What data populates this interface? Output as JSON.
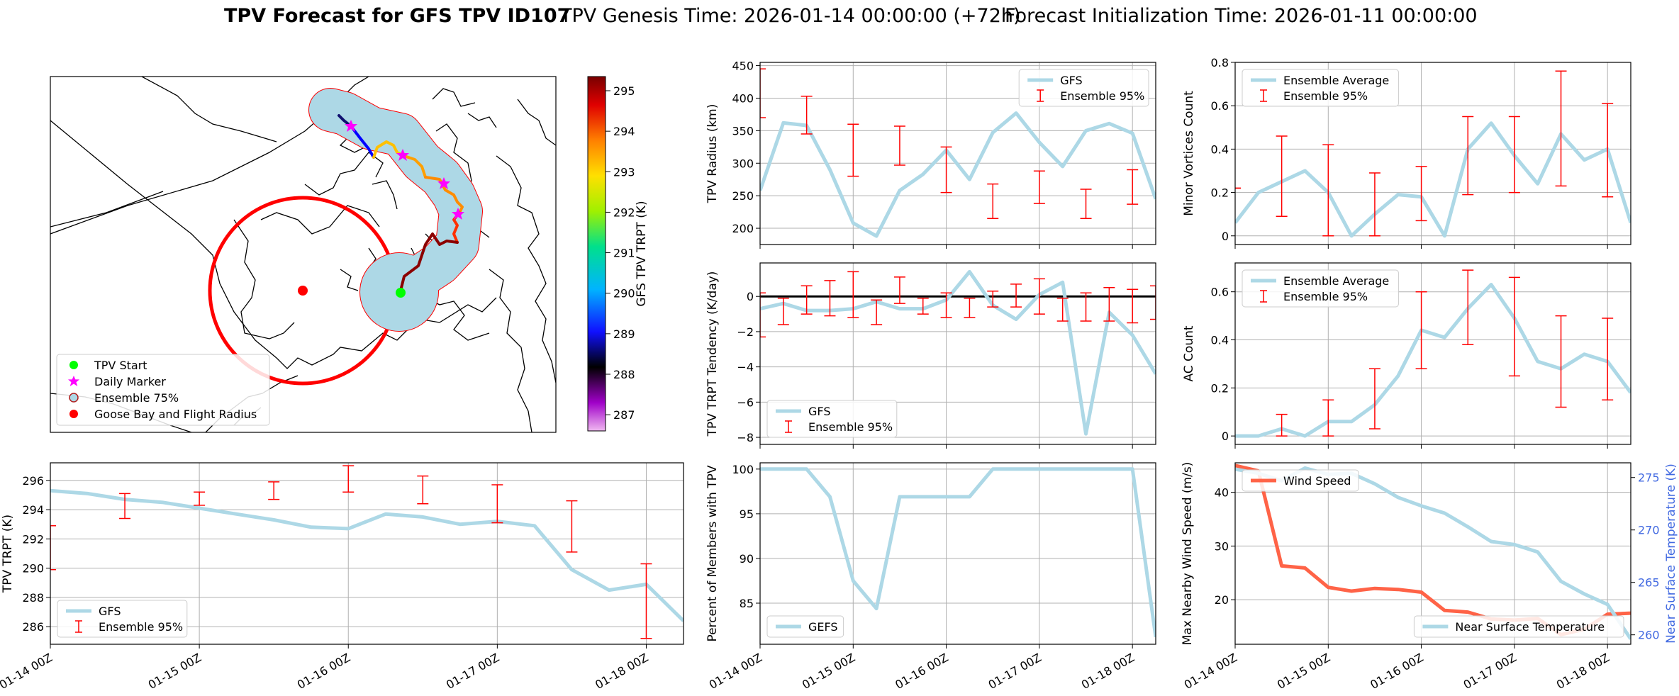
{
  "title": {
    "bold": "TPV Forecast for GFS TPV ID107",
    "genesis": "TPV Genesis Time: 2026-01-14 00:00:00 (+72h)",
    "init": "Forecast Initialization Time: 2026-01-11 00:00:00"
  },
  "colors": {
    "gfs": "#add8e6",
    "ensemble": "#ff0000",
    "wind": "#ff6347",
    "temp_axis": "#4169e1",
    "track_fill": "#add8e6",
    "start": "#00ff00",
    "marker": "#ff00ff",
    "goose": "#ff0000"
  },
  "date_ticks": [
    "01-14 00Z",
    "01-15 00Z",
    "01-16 00Z",
    "01-17 00Z",
    "01-18 00Z"
  ],
  "map": {
    "colorbar": {
      "label": "GFS TPV TRPT (K)",
      "ticks": [
        "295",
        "294",
        "293",
        "292",
        "291",
        "290",
        "289",
        "288",
        "287"
      ],
      "vmin": 286.6,
      "vmax": 295.35
    },
    "legend": [
      {
        "label": "TPV Start",
        "icon": "green-circle"
      },
      {
        "label": "Daily Marker",
        "icon": "magenta-star"
      },
      {
        "label": "Ensemble 75%",
        "icon": "lightblue-circle"
      },
      {
        "label": "Goose Bay and Flight Radius",
        "icon": "red-circle"
      }
    ]
  },
  "chart_data": [
    {
      "id": "radius",
      "type": "line",
      "ylabel": "TPV Radius (km)",
      "ylim": [
        175,
        455
      ],
      "yticks": [
        200,
        250,
        300,
        350,
        400,
        450
      ],
      "legend": [
        "GFS",
        "Ensemble 95%"
      ],
      "series": [
        {
          "name": "GFS",
          "x_days": [
            0,
            0.25,
            0.5,
            0.75,
            1,
            1.25,
            1.5,
            1.75,
            2,
            2.25,
            2.5,
            2.75,
            3,
            3.25,
            3.5,
            3.75,
            4,
            4.25
          ],
          "values": [
            258,
            362,
            358,
            290,
            208,
            188,
            258,
            283,
            320,
            275,
            347,
            377,
            332,
            295,
            350,
            361,
            346,
            245
          ]
        }
      ],
      "errorbars": [
        {
          "x": 0,
          "low": 370,
          "high": 445
        },
        {
          "x": 0.5,
          "low": 345,
          "high": 403
        },
        {
          "x": 1,
          "low": 280,
          "high": 360
        },
        {
          "x": 1.5,
          "low": 297,
          "high": 357
        },
        {
          "x": 2,
          "low": 255,
          "high": 325
        },
        {
          "x": 2.5,
          "low": 215,
          "high": 268
        },
        {
          "x": 3,
          "low": 238,
          "high": 288
        },
        {
          "x": 3.5,
          "low": 215,
          "high": 260
        },
        {
          "x": 4,
          "low": 237,
          "high": 290
        }
      ]
    },
    {
      "id": "minor",
      "type": "line",
      "ylabel": "Minor Vortices Count",
      "ylim": [
        -0.04,
        0.8
      ],
      "yticks": [
        0.0,
        0.2,
        0.4,
        0.6,
        0.8
      ],
      "legend": [
        "Ensemble Average",
        "Ensemble 95%"
      ],
      "series": [
        {
          "name": "Ensemble Average",
          "x_days": [
            0,
            0.25,
            0.5,
            0.75,
            1,
            1.25,
            1.5,
            1.75,
            2,
            2.25,
            2.5,
            2.75,
            3,
            3.25,
            3.5,
            3.75,
            4,
            4.25
          ],
          "values": [
            0.06,
            0.2,
            0.25,
            0.3,
            0.2,
            0.0,
            0.1,
            0.19,
            0.18,
            0.0,
            0.4,
            0.52,
            0.37,
            0.24,
            0.47,
            0.35,
            0.4,
            0.06
          ]
        }
      ],
      "errorbars": [
        {
          "x": 0,
          "low": 0.22,
          "high": 0.22
        },
        {
          "x": 0.5,
          "low": 0.09,
          "high": 0.46
        },
        {
          "x": 1,
          "low": 0.0,
          "high": 0.42
        },
        {
          "x": 1.5,
          "low": 0.0,
          "high": 0.29
        },
        {
          "x": 2,
          "low": 0.07,
          "high": 0.32
        },
        {
          "x": 2.5,
          "low": 0.19,
          "high": 0.55
        },
        {
          "x": 3,
          "low": 0.2,
          "high": 0.55
        },
        {
          "x": 3.5,
          "low": 0.23,
          "high": 0.76
        },
        {
          "x": 4,
          "low": 0.18,
          "high": 0.61
        }
      ]
    },
    {
      "id": "tendency",
      "type": "line",
      "ylabel": "TPV TRPT Tendency (K/day)",
      "ylim": [
        -8.4,
        1.9
      ],
      "yticks": [
        -8,
        -6,
        -4,
        -2,
        0
      ],
      "zero_line": true,
      "legend": [
        "GFS",
        "Ensemble 95%"
      ],
      "series": [
        {
          "name": "GFS",
          "x_days": [
            0,
            0.25,
            0.5,
            0.75,
            1,
            1.25,
            1.5,
            1.75,
            2,
            2.25,
            2.5,
            2.75,
            3,
            3.25,
            3.5,
            3.75,
            4,
            4.25
          ],
          "values": [
            -0.7,
            -0.4,
            -0.8,
            -0.8,
            -0.7,
            -0.3,
            -0.7,
            -0.7,
            -0.2,
            1.4,
            -0.5,
            -1.3,
            0.1,
            0.8,
            -7.8,
            -0.9,
            -2.2,
            -4.4
          ]
        }
      ],
      "errorbars": [
        {
          "x": 0,
          "low": -2.3,
          "high": 0.2
        },
        {
          "x": 0.25,
          "low": -1.6,
          "high": -0.1
        },
        {
          "x": 0.5,
          "low": -1.0,
          "high": 0.6
        },
        {
          "x": 0.75,
          "low": -1.1,
          "high": 0.9
        },
        {
          "x": 1,
          "low": -1.2,
          "high": 1.4
        },
        {
          "x": 1.25,
          "low": -1.6,
          "high": -0.2
        },
        {
          "x": 1.5,
          "low": -0.4,
          "high": 1.1
        },
        {
          "x": 1.75,
          "low": -1.0,
          "high": -0.1
        },
        {
          "x": 2,
          "low": -1.2,
          "high": 0.2
        },
        {
          "x": 2.25,
          "low": -1.2,
          "high": -0.1
        },
        {
          "x": 2.5,
          "low": -0.6,
          "high": 0.3
        },
        {
          "x": 2.75,
          "low": -0.6,
          "high": 0.7
        },
        {
          "x": 3,
          "low": -1.0,
          "high": 1.0
        },
        {
          "x": 3.25,
          "low": -1.4,
          "high": -0.1
        },
        {
          "x": 3.5,
          "low": -1.4,
          "high": 0.2
        },
        {
          "x": 3.75,
          "low": -1.4,
          "high": 0.5
        },
        {
          "x": 4,
          "low": -1.5,
          "high": 0.4
        },
        {
          "x": 4.25,
          "low": -1.3,
          "high": 0.6
        }
      ]
    },
    {
      "id": "ac",
      "type": "line",
      "ylabel": "AC Count",
      "ylim": [
        -0.035,
        0.72
      ],
      "yticks": [
        0.0,
        0.2,
        0.4,
        0.6
      ],
      "legend": [
        "Ensemble Average",
        "Ensemble 95%"
      ],
      "series": [
        {
          "name": "Ensemble Average",
          "x_days": [
            0,
            0.25,
            0.5,
            0.75,
            1,
            1.25,
            1.5,
            1.75,
            2,
            2.25,
            2.5,
            2.75,
            3,
            3.25,
            3.5,
            3.75,
            4,
            4.25
          ],
          "values": [
            0.0,
            0.0,
            0.03,
            0.0,
            0.06,
            0.06,
            0.13,
            0.25,
            0.44,
            0.41,
            0.53,
            0.63,
            0.49,
            0.31,
            0.28,
            0.34,
            0.31,
            0.18
          ]
        }
      ],
      "errorbars": [
        {
          "x": 0.5,
          "low": 0.0,
          "high": 0.09
        },
        {
          "x": 1,
          "low": 0.0,
          "high": 0.15
        },
        {
          "x": 1.5,
          "low": 0.03,
          "high": 0.28
        },
        {
          "x": 2,
          "low": 0.28,
          "high": 0.6
        },
        {
          "x": 2.5,
          "low": 0.38,
          "high": 0.69
        },
        {
          "x": 3,
          "low": 0.25,
          "high": 0.66
        },
        {
          "x": 3.5,
          "low": 0.12,
          "high": 0.5
        },
        {
          "x": 4,
          "low": 0.15,
          "high": 0.49
        }
      ]
    },
    {
      "id": "trpt",
      "type": "line",
      "ylabel": "TPV TRPT (K)",
      "ylim": [
        284.8,
        297.2
      ],
      "yticks": [
        286,
        288,
        290,
        292,
        294,
        296
      ],
      "legend": [
        "GFS",
        "Ensemble 95%"
      ],
      "series": [
        {
          "name": "GFS",
          "x_days": [
            0,
            0.25,
            0.5,
            0.75,
            1,
            1.25,
            1.5,
            1.75,
            2,
            2.25,
            2.5,
            2.75,
            3,
            3.25,
            3.5,
            3.75,
            4,
            4.25
          ],
          "values": [
            295.3,
            295.1,
            294.7,
            294.5,
            294.1,
            293.7,
            293.3,
            292.8,
            292.7,
            293.7,
            293.5,
            293.0,
            293.2,
            292.9,
            289.9,
            288.5,
            288.9,
            286.4
          ]
        }
      ],
      "errorbars": [
        {
          "x": 0,
          "low": 289.9,
          "high": 292.9
        },
        {
          "x": 0.5,
          "low": 293.4,
          "high": 295.1
        },
        {
          "x": 1,
          "low": 294.3,
          "high": 295.2
        },
        {
          "x": 1.5,
          "low": 294.7,
          "high": 295.9
        },
        {
          "x": 2,
          "low": 295.2,
          "high": 297.0
        },
        {
          "x": 2.5,
          "low": 294.4,
          "high": 296.3
        },
        {
          "x": 3,
          "low": 293.1,
          "high": 295.7
        },
        {
          "x": 3.5,
          "low": 291.1,
          "high": 294.6
        },
        {
          "x": 4,
          "low": 285.2,
          "high": 290.3
        }
      ]
    },
    {
      "id": "members",
      "type": "line",
      "ylabel": "Percent of Members with TPV",
      "ylim": [
        80.4,
        100.7
      ],
      "yticks": [
        85,
        90,
        95,
        100
      ],
      "legend": [
        "GEFS"
      ],
      "series": [
        {
          "name": "GEFS",
          "x_days": [
            0,
            0.25,
            0.5,
            0.75,
            1,
            1.25,
            1.5,
            1.75,
            2,
            2.25,
            2.5,
            2.75,
            3,
            3.25,
            3.5,
            3.75,
            4,
            4.25
          ],
          "values": [
            100,
            100,
            100,
            96.9,
            87.5,
            84.4,
            96.9,
            96.9,
            96.9,
            96.9,
            100,
            100,
            100,
            100,
            100,
            100,
            100,
            81.2
          ]
        }
      ]
    },
    {
      "id": "wind_temp",
      "type": "line",
      "ylabel": "Max Nearby Wind Speed (m/s)",
      "ylabel_right": "Near Surface Temperature (K)",
      "ylim": [
        11.7,
        45.5
      ],
      "yticks": [
        20,
        30,
        40
      ],
      "ylim_right": [
        259.1,
        276.4
      ],
      "yticks_right": [
        260,
        265,
        270,
        275
      ],
      "legend": [
        "Wind Speed"
      ],
      "legend_right": [
        "Near Surface Temperature"
      ],
      "series": [
        {
          "name": "Wind Speed",
          "x_days": [
            0,
            0.25,
            0.5,
            0.75,
            1,
            1.25,
            1.5,
            1.75,
            2,
            2.25,
            2.5,
            2.75,
            3,
            3.25,
            3.5,
            3.75,
            4,
            4.25
          ],
          "values": [
            45,
            44,
            26.3,
            25.9,
            22.3,
            21.6,
            22.1,
            21.9,
            21.4,
            18.0,
            17.7,
            16.4,
            16.2,
            16.5,
            13.5,
            14.5,
            17.3,
            17.5
          ]
        },
        {
          "name": "Near Surface Temperature",
          "axis": "right",
          "x_days": [
            0,
            0.25,
            0.5,
            0.75,
            1,
            1.25,
            1.5,
            1.75,
            2,
            2.25,
            2.5,
            2.75,
            3,
            3.25,
            3.5,
            3.75,
            4,
            4.25
          ],
          "values": [
            275.8,
            275.4,
            274.7,
            275.9,
            275.3,
            275.4,
            274.4,
            273.1,
            272.3,
            271.6,
            270.3,
            268.9,
            268.6,
            267.9,
            265.1,
            263.9,
            262.9,
            259.6
          ]
        }
      ]
    }
  ]
}
